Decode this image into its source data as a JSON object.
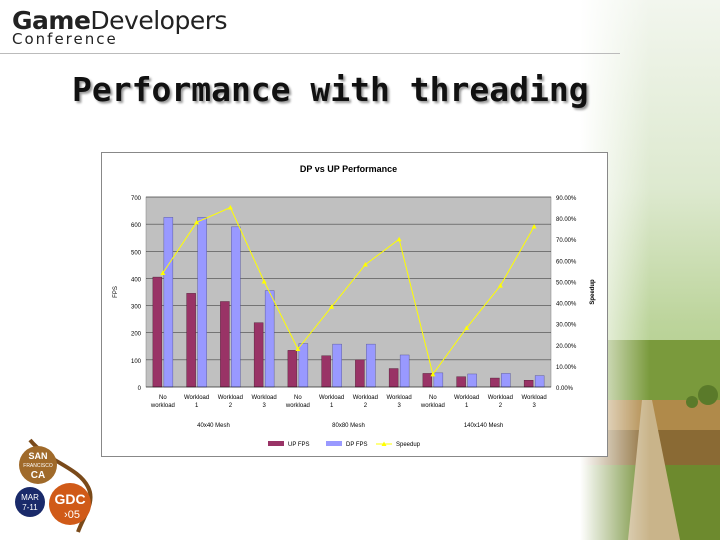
{
  "header": {
    "logo_game": "Game",
    "logo_developers": "Developers",
    "logo_conference": "Conference"
  },
  "slide": {
    "title": "Performance with threading"
  },
  "badge": {
    "san": "SAN",
    "francisco": "FRANCISCO",
    "ca": "CA",
    "mar": "MAR",
    "dates": "7-11",
    "gdc": "GDC",
    "year": "›05"
  },
  "colors": {
    "up_fps": "#993366",
    "dp_fps": "#9999ff",
    "speedup": "#ffff00",
    "plot_bg": "#c0c0c0"
  },
  "chart_data": {
    "type": "bar",
    "title": "DP vs UP Performance",
    "ylabel": "FPS",
    "y2label": "Speedup",
    "ylim": [
      0,
      700
    ],
    "y2lim": [
      0,
      90
    ],
    "yticks": [
      "0",
      "100",
      "200",
      "300",
      "400",
      "500",
      "600",
      "700"
    ],
    "y2ticks": [
      "0.00%",
      "10.00%",
      "20.00%",
      "30.00%",
      "40.00%",
      "50.00%",
      "60.00%",
      "70.00%",
      "80.00%",
      "90.00%"
    ],
    "categories": [
      [
        "No",
        "workload"
      ],
      [
        "Workload",
        "1"
      ],
      [
        "Workload",
        "2"
      ],
      [
        "Workload",
        "3"
      ],
      [
        "No",
        "workload"
      ],
      [
        "Workload",
        "1"
      ],
      [
        "Workload",
        "2"
      ],
      [
        "Workload",
        "3"
      ],
      [
        "No",
        "workload"
      ],
      [
        "Workload",
        "1"
      ],
      [
        "Workload",
        "2"
      ],
      [
        "Workload",
        "3"
      ]
    ],
    "groups": [
      "40x40 Mesh",
      "80x80 Mesh",
      "140x140 Mesh"
    ],
    "series": [
      {
        "name": "UP FPS",
        "values": [
          405,
          345,
          315,
          237,
          135,
          115,
          100,
          68,
          50,
          38,
          33,
          25
        ]
      },
      {
        "name": "DP FPS",
        "values": [
          625,
          625,
          590,
          355,
          160,
          158,
          158,
          118,
          52,
          48,
          50,
          42
        ]
      },
      {
        "name": "Speedup",
        "axis": "secondary",
        "values": [
          54,
          78,
          85,
          50,
          18,
          38,
          58,
          70,
          6,
          28,
          48,
          76
        ]
      }
    ],
    "grid": "horizontal",
    "legend": "bottom"
  }
}
